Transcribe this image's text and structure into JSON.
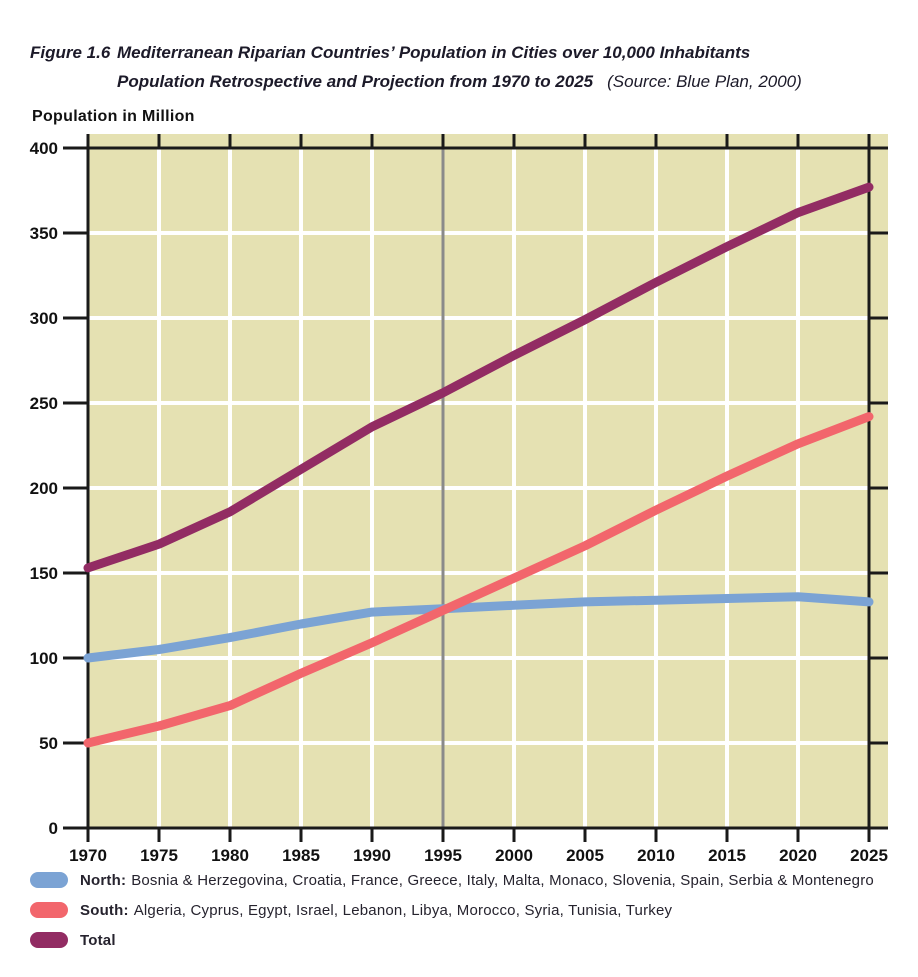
{
  "header": {
    "figure_label": "Figure 1.6",
    "title": "Mediterranean Riparian Countries’ Population in Cities over 10,000 Inhabitants",
    "subtitle": "Population Retrospective and Projection from 1970 to 2025",
    "source": "(Source: Blue Plan, 2000)"
  },
  "y_axis_title": "Population in Million",
  "chart_data": {
    "type": "line",
    "x": [
      1970,
      1975,
      1980,
      1985,
      1990,
      1995,
      2000,
      2005,
      2010,
      2015,
      2020,
      2025
    ],
    "x_tick_labels": [
      "1970",
      "1975",
      "1980",
      "1985",
      "1990",
      "1995",
      "2000",
      "2005",
      "2010",
      "2015",
      "2020",
      "2025"
    ],
    "y_ticks": [
      0,
      50,
      100,
      150,
      200,
      250,
      300,
      350,
      400
    ],
    "y_tick_labels": [
      "0",
      "50",
      "100",
      "150",
      "200",
      "250",
      "300",
      "350",
      "400"
    ],
    "ylim": [
      0,
      400
    ],
    "xlim": [
      1970,
      2025
    ],
    "grid": true,
    "legend_position": "bottom",
    "marker_line": {
      "x": 1995,
      "color": "#8A8A8A"
    },
    "series": [
      {
        "name": "North",
        "color": "#7BA3D4",
        "values": [
          100,
          105,
          112,
          120,
          127,
          129,
          131,
          133,
          134,
          135,
          136,
          133
        ]
      },
      {
        "name": "South",
        "color": "#F2666C",
        "values": [
          50,
          60,
          72,
          91,
          109,
          128,
          147,
          166,
          187,
          207,
          226,
          242
        ]
      },
      {
        "name": "Total",
        "color": "#922C63",
        "values": [
          153,
          167,
          186,
          211,
          236,
          256,
          278,
          299,
          321,
          342,
          362,
          377
        ]
      }
    ]
  },
  "legend": {
    "items": [
      {
        "label": "North:",
        "countries": "Bosnia & Herzegovina, Croatia, France, Greece, Italy, Malta, Monaco, Slovenia, Spain, Serbia & Montenegro",
        "color": "#7BA3D4"
      },
      {
        "label": "South:",
        "countries": "Algeria, Cyprus, Egypt, Israel, Lebanon, Libya, Morocco, Syria, Tunisia, Turkey",
        "color": "#F2666C"
      },
      {
        "label": "Total",
        "countries": "",
        "color": "#922C63"
      }
    ]
  },
  "colors": {
    "plot_background": "#E5E1B2",
    "gridline": "#FFFFFF",
    "frame": "#1A1A1A",
    "marker_1995": "#8A8A8A",
    "title_text": "#1C1A29",
    "label_text": "#111111"
  }
}
